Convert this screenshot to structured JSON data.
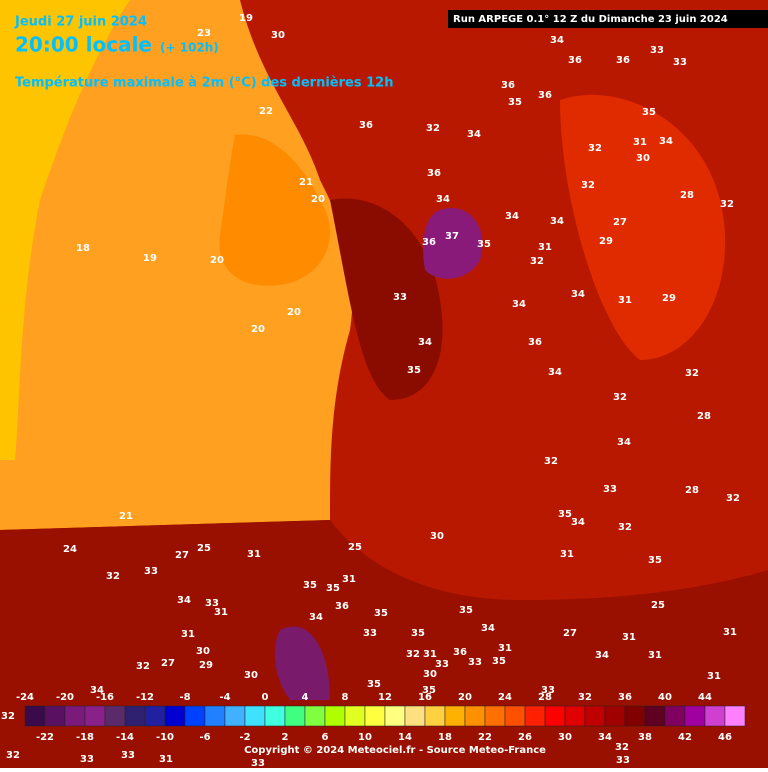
{
  "header": {
    "date": "Jeudi 27 juin 2024",
    "time": "20:00 locale",
    "lead": "(+ 102h)",
    "variable": "Température maximale à 2m (°C) des dernières 12h",
    "run": "Run ARPEGE 0.1° 12 Z du Dimanche 23 juin 2024"
  },
  "scale": {
    "labels_top": [
      -24,
      -20,
      -16,
      -12,
      -8,
      -4,
      0,
      4,
      8,
      12,
      16,
      20,
      24,
      28,
      32,
      36,
      40,
      44
    ],
    "labels_bottom": [
      -22,
      -18,
      -14,
      -10,
      -6,
      -2,
      2,
      6,
      10,
      14,
      18,
      22,
      26,
      30,
      34,
      38,
      42,
      46
    ],
    "colors": [
      "#3a0a4a",
      "#5a1060",
      "#7a1a7a",
      "#8a208a",
      "#5a2a6a",
      "#302070",
      "#2020a0",
      "#0000d0",
      "#0040ff",
      "#2080ff",
      "#40b0ff",
      "#40e0ff",
      "#40ffe0",
      "#40ff80",
      "#80ff40",
      "#b0ff00",
      "#e0ff20",
      "#ffff40",
      "#ffff80",
      "#ffe080",
      "#ffd040",
      "#ffb000",
      "#ff9000",
      "#ff7000",
      "#ff5000",
      "#ff2000",
      "#ff0000",
      "#e00000",
      "#c00000",
      "#a00000",
      "#800000",
      "#600020",
      "#800060",
      "#a000a0",
      "#d040d0",
      "#ff80ff"
    ]
  },
  "map_labels": [
    30,
    34,
    36,
    36,
    33,
    33,
    36,
    35,
    36,
    35,
    36,
    32,
    34,
    32,
    31,
    34,
    30,
    36,
    32,
    34,
    34,
    34,
    27,
    29,
    37,
    35,
    36,
    31,
    32,
    28,
    32,
    34,
    34,
    31,
    29,
    33,
    34,
    36,
    34,
    35,
    32,
    32,
    28,
    34,
    32,
    33,
    28,
    32,
    35,
    34,
    32,
    30,
    31,
    35,
    21,
    20,
    20,
    19,
    18,
    19,
    23,
    20,
    20,
    22,
    21,
    24,
    27,
    25,
    31,
    25,
    32,
    33,
    34,
    33,
    31,
    35,
    35,
    31,
    36,
    35,
    34,
    31,
    33,
    35,
    34,
    31,
    36,
    33,
    35,
    32,
    31,
    33,
    35,
    27,
    31,
    25,
    31,
    31,
    34,
    31,
    30,
    35,
    32,
    27,
    30,
    29,
    30,
    35,
    33,
    34,
    32,
    32,
    33,
    33,
    31,
    33,
    32,
    33
  ],
  "footer": {
    "copyright": "Copyright © 2024 Meteociel.fr - Source Meteo-France"
  }
}
